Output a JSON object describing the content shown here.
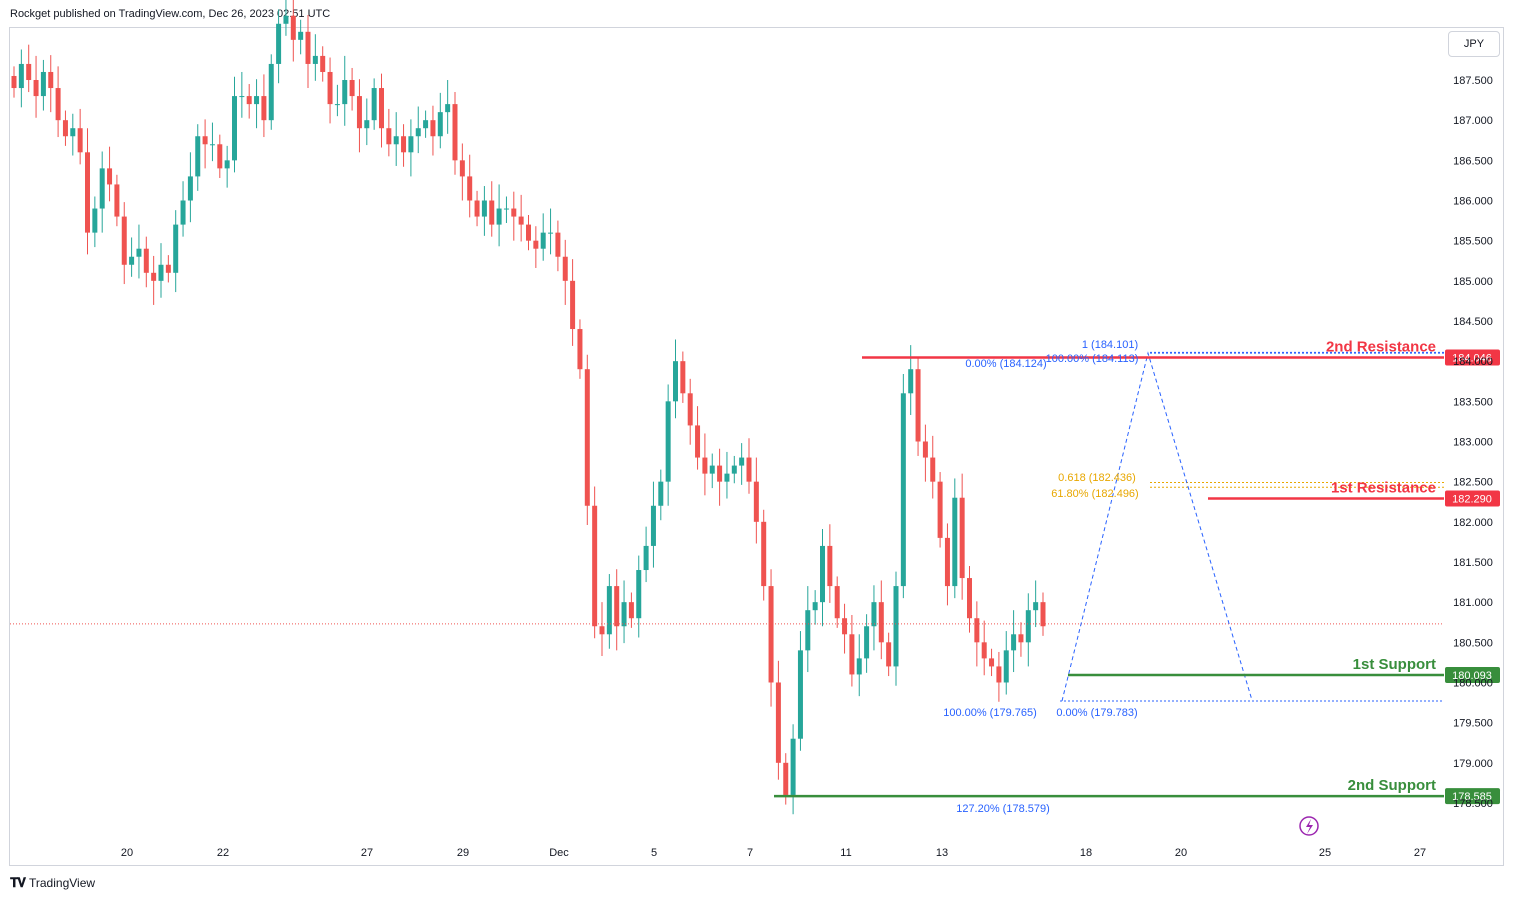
{
  "header": {
    "published": "Rockget published on TradingView.com, Dec 26, 2023 02:51 UTC"
  },
  "footer": {
    "brand": "TradingView",
    "logo": "tv-logo-icon"
  },
  "currency": "JPY",
  "colors": {
    "up": "#26a69a",
    "down": "#ef5350",
    "resistance": "#f23645",
    "support": "#388e3c",
    "fib_blue": "#2962ff",
    "fib_gold": "#e8a700",
    "price_dots": "#ef5350"
  },
  "chart_data": {
    "type": "candlestick",
    "title": "",
    "xlabel": "",
    "ylabel": "",
    "ylim": [
      177.6,
      188.3
    ],
    "current_price": 180.73,
    "y_ticks": [
      "187.500",
      "187.000",
      "186.500",
      "186.000",
      "185.500",
      "185.000",
      "184.500",
      "184.000",
      "183.500",
      "183.000",
      "182.500",
      "182.000",
      "181.500",
      "181.000",
      "180.500",
      "180.000",
      "179.500",
      "179.000",
      "178.500"
    ],
    "x_ticks": [
      {
        "label": "20",
        "i": 0
      },
      {
        "label": "22",
        "i": 1
      },
      {
        "label": "27",
        "i": 2
      },
      {
        "label": "29",
        "i": 3
      },
      {
        "label": "Dec",
        "i": 4
      },
      {
        "label": "5",
        "i": 5
      },
      {
        "label": "7",
        "i": 6
      },
      {
        "label": "11",
        "i": 7
      },
      {
        "label": "13",
        "i": 8
      },
      {
        "label": "18",
        "i": 9
      },
      {
        "label": "20",
        "i": 10
      },
      {
        "label": "25",
        "i": 11
      },
      {
        "label": "27",
        "i": 12
      }
    ],
    "levels": [
      {
        "name": "2nd Resistance",
        "value": 184.046,
        "label": "184.046",
        "kind": "resistance"
      },
      {
        "name": "1st Resistance",
        "value": 182.29,
        "label": "182.290",
        "kind": "resistance"
      },
      {
        "name": "1st Support",
        "value": 180.093,
        "label": "180.093",
        "kind": "support"
      },
      {
        "name": "2nd Support",
        "value": 178.585,
        "label": "178.585",
        "kind": "support"
      }
    ],
    "fib_labels": [
      {
        "text": "1 (184.101)",
        "color": "blue"
      },
      {
        "text": "100.00% (184.113)",
        "color": "blue"
      },
      {
        "text": "0.00% (184.124)",
        "color": "blue"
      },
      {
        "text": "0.618 (182.436)",
        "color": "gold"
      },
      {
        "text": "61.80% (182.496)",
        "color": "gold"
      },
      {
        "text": "100.00% (179.765)",
        "color": "blue"
      },
      {
        "text": "0.00% (179.783)",
        "color": "blue"
      },
      {
        "text": "127.20% (178.579)",
        "color": "blue"
      }
    ],
    "closes": [
      187.4,
      187.7,
      187.5,
      187.3,
      187.6,
      187.4,
      187.0,
      186.8,
      186.9,
      186.6,
      185.6,
      185.9,
      186.4,
      186.2,
      185.8,
      185.2,
      185.3,
      185.4,
      185.1,
      185.0,
      185.2,
      185.1,
      185.7,
      186.0,
      186.3,
      186.8,
      186.7,
      186.7,
      186.4,
      186.5,
      187.3,
      187.3,
      187.2,
      187.3,
      187.0,
      187.7,
      188.2,
      188.3,
      188.0,
      188.1,
      187.7,
      187.8,
      187.6,
      187.2,
      187.2,
      187.5,
      187.3,
      186.9,
      187.0,
      187.4,
      186.9,
      186.7,
      186.8,
      186.6,
      186.8,
      186.9,
      187.0,
      186.8,
      187.1,
      187.2,
      186.5,
      186.3,
      186.0,
      185.8,
      186.0,
      185.7,
      185.9,
      185.9,
      185.8,
      185.7,
      185.5,
      185.4,
      185.6,
      185.6,
      185.3,
      185.0,
      184.4,
      183.9,
      182.2,
      180.7,
      180.6,
      181.2,
      180.7,
      181.0,
      180.8,
      181.4,
      181.7,
      182.2,
      182.5,
      183.5,
      184.0,
      183.6,
      183.2,
      182.8,
      182.6,
      182.7,
      182.5,
      182.6,
      182.7,
      182.8,
      182.5,
      182.0,
      181.2,
      180.0,
      179.0,
      178.6,
      179.3,
      180.4,
      180.9,
      181.0,
      181.7,
      181.2,
      180.8,
      180.6,
      180.1,
      180.3,
      180.7,
      181.0,
      180.5,
      180.2,
      181.2,
      183.6,
      183.9,
      183.0,
      182.8,
      182.5,
      181.8,
      181.2,
      182.3,
      181.3,
      180.8,
      180.5,
      180.3,
      180.2,
      180.0,
      180.4,
      180.6,
      180.5,
      180.9,
      181.0,
      180.7
    ]
  }
}
